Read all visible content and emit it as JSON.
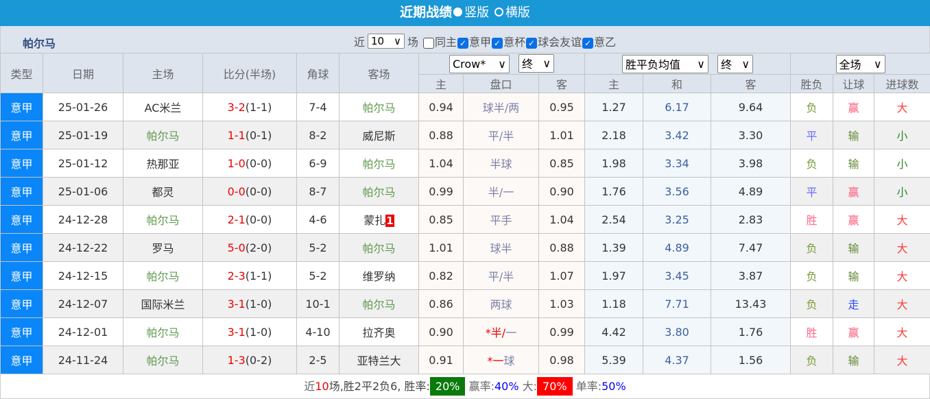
{
  "header": {
    "title": "近期战绩",
    "radio_vertical": "竖版",
    "radio_horizontal": "横版"
  },
  "filter": {
    "team": "帕尔马",
    "near_label": "近",
    "count": "10",
    "unit": "场",
    "checkboxes": [
      {
        "label": "同主",
        "checked": false
      },
      {
        "label": "意甲",
        "checked": true
      },
      {
        "label": "意杯",
        "checked": true
      },
      {
        "label": "球会友谊",
        "checked": true
      },
      {
        "label": "意乙",
        "checked": true
      }
    ]
  },
  "columns": {
    "type": "类型",
    "date": "日期",
    "home": "主场",
    "score": "比分(半场)",
    "corner": "角球",
    "away": "客场",
    "company": "Crow*",
    "handicap_phase": "终",
    "odds_type": "胜平负均值",
    "odds_phase": "终",
    "period": "全场",
    "sub": [
      "主",
      "盘口",
      "客",
      "主",
      "和",
      "客",
      "胜负",
      "让球",
      "进球数"
    ]
  },
  "rows": [
    {
      "type": "意甲",
      "date": "25-01-26",
      "home": "AC米兰",
      "ft": "3-2",
      "ht": "(1-1)",
      "corner": "7-4",
      "away": "帕尔马",
      "away_badge": "",
      "h1": "0.94",
      "line": "球半/两",
      "h2": "0.95",
      "w": "1.27",
      "d": "6.17",
      "l": "9.64",
      "res": "负",
      "ah": "赢",
      "ou": "大"
    },
    {
      "type": "意甲",
      "date": "25-01-19",
      "home": "帕尔马",
      "ft": "1-1",
      "ht": "(0-1)",
      "corner": "8-2",
      "away": "威尼斯",
      "away_badge": "",
      "h1": "0.88",
      "line": "平/半",
      "h2": "1.01",
      "w": "2.18",
      "d": "3.42",
      "l": "3.30",
      "res": "平",
      "ah": "输",
      "ou": "小"
    },
    {
      "type": "意甲",
      "date": "25-01-12",
      "home": "热那亚",
      "ft": "1-0",
      "ht": "(0-0)",
      "corner": "6-9",
      "away": "帕尔马",
      "away_badge": "",
      "h1": "1.04",
      "line": "半球",
      "h2": "0.85",
      "w": "1.98",
      "d": "3.34",
      "l": "3.98",
      "res": "负",
      "ah": "输",
      "ou": "小"
    },
    {
      "type": "意甲",
      "date": "25-01-06",
      "home": "都灵",
      "ft": "0-0",
      "ht": "(0-0)",
      "corner": "8-7",
      "away": "帕尔马",
      "away_badge": "",
      "h1": "0.99",
      "line": "半/一",
      "h2": "0.90",
      "w": "1.76",
      "d": "3.56",
      "l": "4.89",
      "res": "平",
      "ah": "赢",
      "ou": "小"
    },
    {
      "type": "意甲",
      "date": "24-12-28",
      "home": "帕尔马",
      "ft": "2-1",
      "ht": "(0-0)",
      "corner": "4-6",
      "away": "蒙扎",
      "away_badge": "1",
      "h1": "0.85",
      "line": "平手",
      "h2": "1.04",
      "w": "2.54",
      "d": "3.25",
      "l": "2.83",
      "res": "胜",
      "ah": "赢",
      "ou": "大"
    },
    {
      "type": "意甲",
      "date": "24-12-22",
      "home": "罗马",
      "ft": "5-0",
      "ht": "(2-0)",
      "corner": "5-2",
      "away": "帕尔马",
      "away_badge": "",
      "h1": "1.01",
      "line": "球半",
      "h2": "0.88",
      "w": "1.39",
      "d": "4.89",
      "l": "7.47",
      "res": "负",
      "ah": "输",
      "ou": "大"
    },
    {
      "type": "意甲",
      "date": "24-12-15",
      "home": "帕尔马",
      "ft": "2-3",
      "ht": "(1-1)",
      "corner": "5-2",
      "away": "维罗纳",
      "away_badge": "",
      "h1": "0.82",
      "line": "平/半",
      "h2": "1.07",
      "w": "1.97",
      "d": "3.45",
      "l": "3.87",
      "res": "负",
      "ah": "输",
      "ou": "大"
    },
    {
      "type": "意甲",
      "date": "24-12-07",
      "home": "国际米兰",
      "ft": "3-1",
      "ht": "(1-0)",
      "corner": "10-1",
      "away": "帕尔马",
      "away_badge": "",
      "h1": "0.86",
      "line": "两球",
      "h2": "1.03",
      "w": "1.18",
      "d": "7.71",
      "l": "13.43",
      "res": "负",
      "ah": "走",
      "ou": "大"
    },
    {
      "type": "意甲",
      "date": "24-12-01",
      "home": "帕尔马",
      "ft": "3-1",
      "ht": "(1-0)",
      "corner": "4-10",
      "away": "拉齐奥",
      "away_badge": "",
      "h1": "0.90",
      "line": "*半/一",
      "h2": "0.99",
      "w": "4.42",
      "d": "3.80",
      "l": "1.76",
      "res": "胜",
      "ah": "赢",
      "ou": "大"
    },
    {
      "type": "意甲",
      "date": "24-11-24",
      "home": "帕尔马",
      "ft": "1-3",
      "ht": "(0-2)",
      "corner": "2-5",
      "away": "亚特兰大",
      "away_badge": "",
      "h1": "0.91",
      "line": "*一球",
      "h2": "0.98",
      "w": "5.39",
      "d": "4.37",
      "l": "1.56",
      "res": "负",
      "ah": "输",
      "ou": "大"
    }
  ],
  "footer": {
    "p1": "近",
    "n": "10",
    "p2": "场,胜2平2负6, 胜率:",
    "win_rate": "20%",
    "p3": "赢率:",
    "ah_rate": "40%",
    "p4": "大:",
    "big_rate": "70%",
    "p5": "单率:",
    "odd_rate": "50%"
  },
  "colors": {
    "负": "#7a9a3a",
    "平": "#6a6aff",
    "胜": "#ff6a8a",
    "赢": "#ff5a7a",
    "输": "#6a8a3a",
    "走": "#2a4aff",
    "大": "#ff3a3a",
    "小": "#2a8a2a",
    "title_bar": "#1a97d5",
    "league": "#0a86f8"
  }
}
